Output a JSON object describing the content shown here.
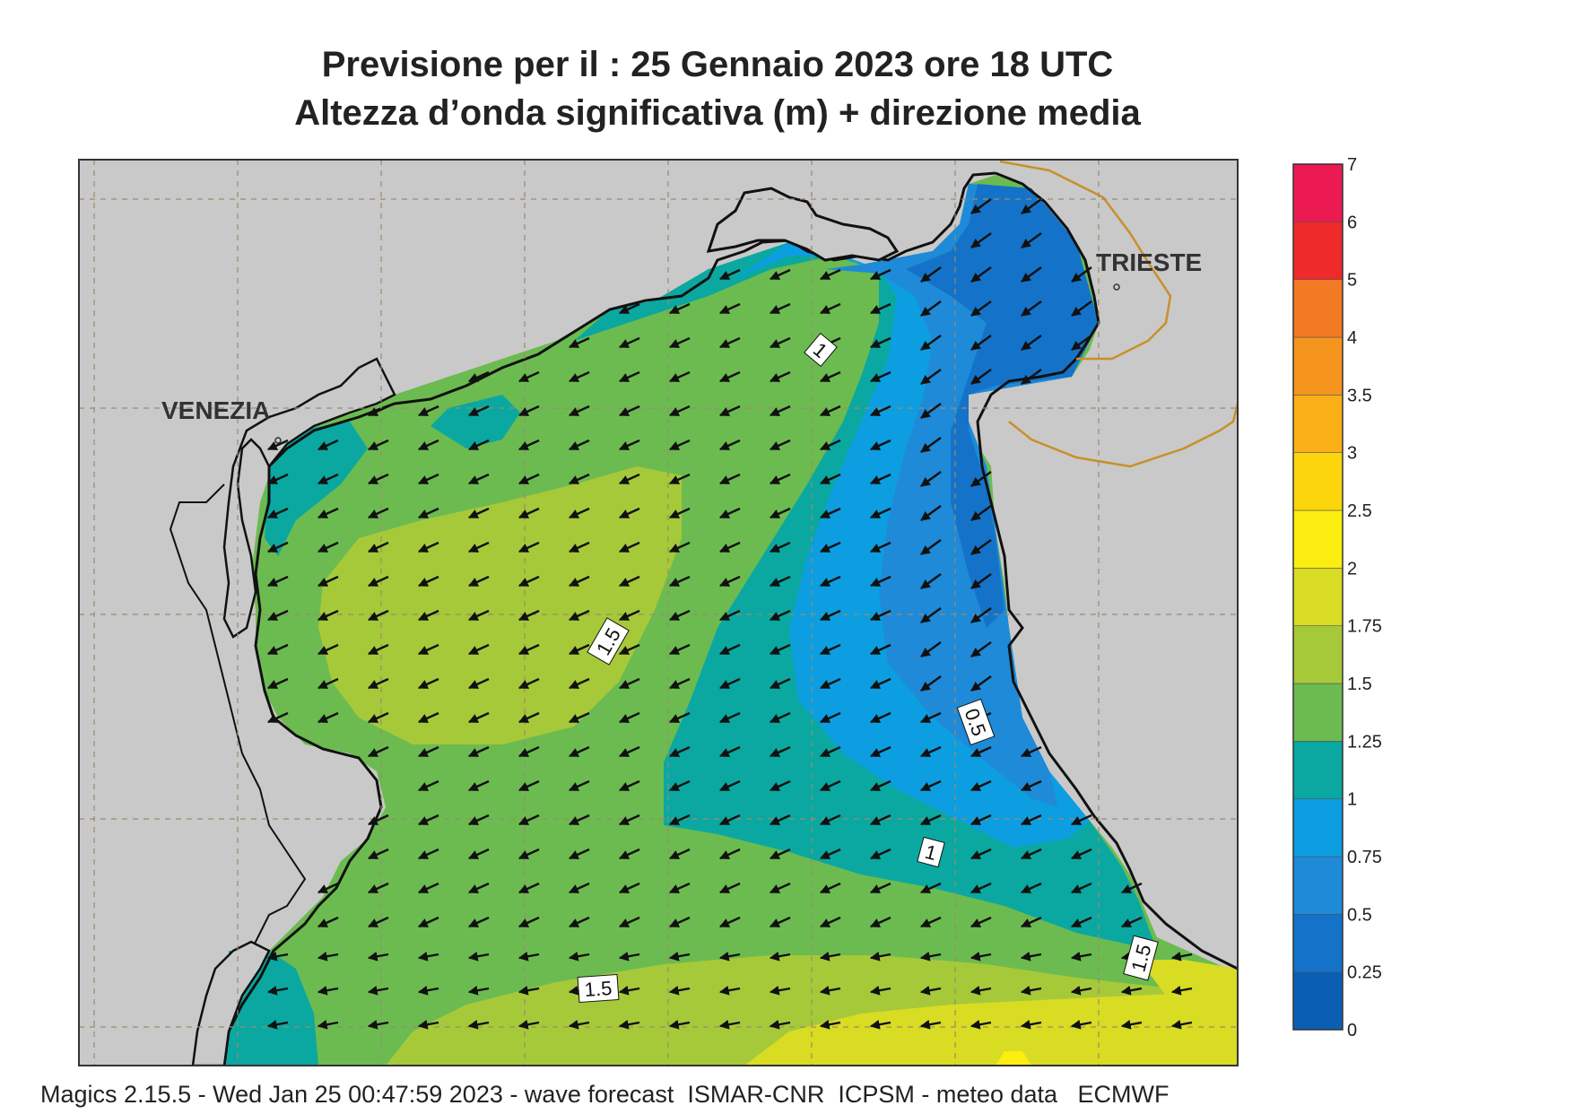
{
  "header": {
    "title_line1": "Previsione per il  :  25  Gennaio  2023   ore 18 UTC",
    "title_line2": "Altezza d’onda significativa (m) + direzione media"
  },
  "map": {
    "cities": [
      {
        "name": "VENEZIA"
      },
      {
        "name": "TRIESTE"
      }
    ],
    "contour_labels": [
      "1",
      "1.5",
      "0.5",
      "1",
      "1.5",
      "1.5"
    ],
    "arrow_direction": "south-west",
    "land_color": "#c9c9c9",
    "border_color": "#c8902a"
  },
  "legend": {
    "levels": [
      {
        "label": "0",
        "color": "#0a5fb4"
      },
      {
        "label": "0.25",
        "color": "#1473c8"
      },
      {
        "label": "0.5",
        "color": "#1e8ad8"
      },
      {
        "label": "0.75",
        "color": "#0c9ee0"
      },
      {
        "label": "1",
        "color": "#0aa8a0"
      },
      {
        "label": "1.25",
        "color": "#6cbb50"
      },
      {
        "label": "1.5",
        "color": "#a6c93a"
      },
      {
        "label": "1.75",
        "color": "#d8dc22"
      },
      {
        "label": "2",
        "color": "#fbee10"
      },
      {
        "label": "2.5",
        "color": "#fcd50c"
      },
      {
        "label": "3",
        "color": "#fbb018"
      },
      {
        "label": "3.5",
        "color": "#f6951e"
      },
      {
        "label": "4",
        "color": "#f37a24"
      },
      {
        "label": "5",
        "color": "#ef2a2a"
      },
      {
        "label": "6",
        "color": "#ec1a52"
      },
      {
        "label": "7",
        "color": ""
      }
    ]
  },
  "footer": {
    "text": "Magics 2.15.5 - Wed Jan 25 00:47:59 2023 - wave forecast  ISMAR-CNR  ICPSM - meteo data   ECMWF"
  }
}
